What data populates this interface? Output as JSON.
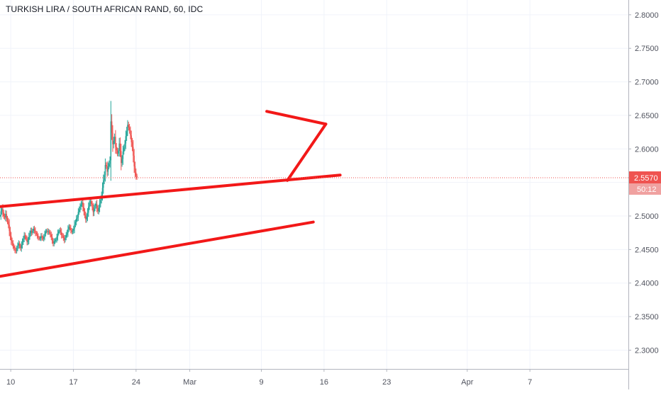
{
  "chart_data": {
    "type": "candlestick",
    "title": "TURKISH LIRA / SOUTH AFRICAN RAND, 60, IDC",
    "y_ticks": [
      "2.8000",
      "2.7500",
      "2.7000",
      "2.6500",
      "2.6000",
      "2.5500",
      "2.5000",
      "2.4500",
      "2.4000",
      "2.3500",
      "2.3000"
    ],
    "y_tick_values": [
      2.8,
      2.75,
      2.7,
      2.65,
      2.6,
      2.55,
      2.5,
      2.45,
      2.4,
      2.35,
      2.3
    ],
    "ylim": [
      2.272,
      2.822
    ],
    "x_ticks": [
      "10",
      "17",
      "24",
      "Mar",
      "9",
      "16",
      "23",
      "Apr",
      "7"
    ],
    "x_tick_days": [
      0,
      7,
      14,
      20,
      28,
      35,
      42,
      51,
      58
    ],
    "xlim": [
      -1.2,
      69
    ],
    "price_label": "2.5570",
    "countdown_label": "50:12",
    "last_price": 2.557,
    "grid": true,
    "colors": {
      "up": "#26a69a",
      "down": "#ef5350",
      "drawing": "#f21818",
      "price_line": "#ef5350",
      "grid": "#f0f3fa",
      "axis_text": "#50535e"
    },
    "candles_close": [
      2.5,
      2.507,
      2.511,
      2.505,
      2.5,
      2.498,
      2.503,
      2.496,
      2.492,
      2.487,
      2.478,
      2.47,
      2.463,
      2.46,
      2.455,
      2.452,
      2.449,
      2.448,
      2.452,
      2.456,
      2.459,
      2.455,
      2.452,
      2.457,
      2.461,
      2.466,
      2.471,
      2.469,
      2.466,
      2.461,
      2.464,
      2.469,
      2.474,
      2.478,
      2.475,
      2.478,
      2.481,
      2.478,
      2.475,
      2.473,
      2.47,
      2.468,
      2.466,
      2.467,
      2.47,
      2.468,
      2.466,
      2.469,
      2.473,
      2.477,
      2.478,
      2.476,
      2.477,
      2.475,
      2.472,
      2.469,
      2.463,
      2.459,
      2.462,
      2.463,
      2.465,
      2.469,
      2.474,
      2.477,
      2.479,
      2.476,
      2.472,
      2.47,
      2.467,
      2.464,
      2.468,
      2.472,
      2.475,
      2.48,
      2.484,
      2.482,
      2.479,
      2.476,
      2.478,
      2.481,
      2.487,
      2.491,
      2.496,
      2.498,
      2.506,
      2.51,
      2.514,
      2.517,
      2.52,
      2.513,
      2.507,
      2.501,
      2.495,
      2.499,
      2.505,
      2.514,
      2.519,
      2.522,
      2.518,
      2.513,
      2.506,
      2.511,
      2.515,
      2.518,
      2.512,
      2.507,
      2.512,
      2.519,
      2.524,
      2.531,
      2.542,
      2.553,
      2.561,
      2.576,
      2.574,
      2.566,
      2.574,
      2.578,
      2.583,
      2.641,
      2.624,
      2.607,
      2.612,
      2.618,
      2.603,
      2.598,
      2.593,
      2.597,
      2.608,
      2.597,
      2.579,
      2.585,
      2.596,
      2.602,
      2.608,
      2.619,
      2.626,
      2.636,
      2.632,
      2.628,
      2.62,
      2.61,
      2.603,
      2.59,
      2.574,
      2.565,
      2.56,
      2.557
    ]
  }
}
